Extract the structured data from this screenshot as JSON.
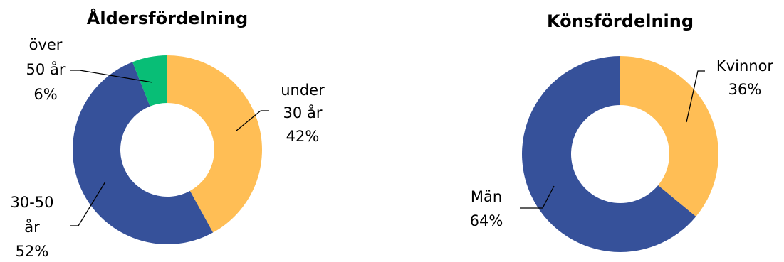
{
  "chart_data": [
    {
      "type": "pie",
      "variant": "donut",
      "title": "Åldersfördelning",
      "slices": [
        {
          "label_lines": [
            "under",
            "30 år"
          ],
          "pct_text": "42%",
          "value": 42,
          "color": "#FFBE55"
        },
        {
          "label_lines": [
            "30-50",
            "år"
          ],
          "pct_text": "52%",
          "value": 52,
          "color": "#36519A"
        },
        {
          "label_lines": [
            "över",
            "50 år"
          ],
          "pct_text": "6%",
          "value": 6,
          "color": "#08BE76"
        }
      ]
    },
    {
      "type": "pie",
      "variant": "donut",
      "title": "Könsfördelning",
      "slices": [
        {
          "label_lines": [
            "Kvinnor"
          ],
          "pct_text": "36%",
          "value": 36,
          "color": "#FFBE55"
        },
        {
          "label_lines": [
            "Män"
          ],
          "pct_text": "64%",
          "value": 64,
          "color": "#36519A"
        }
      ]
    }
  ]
}
